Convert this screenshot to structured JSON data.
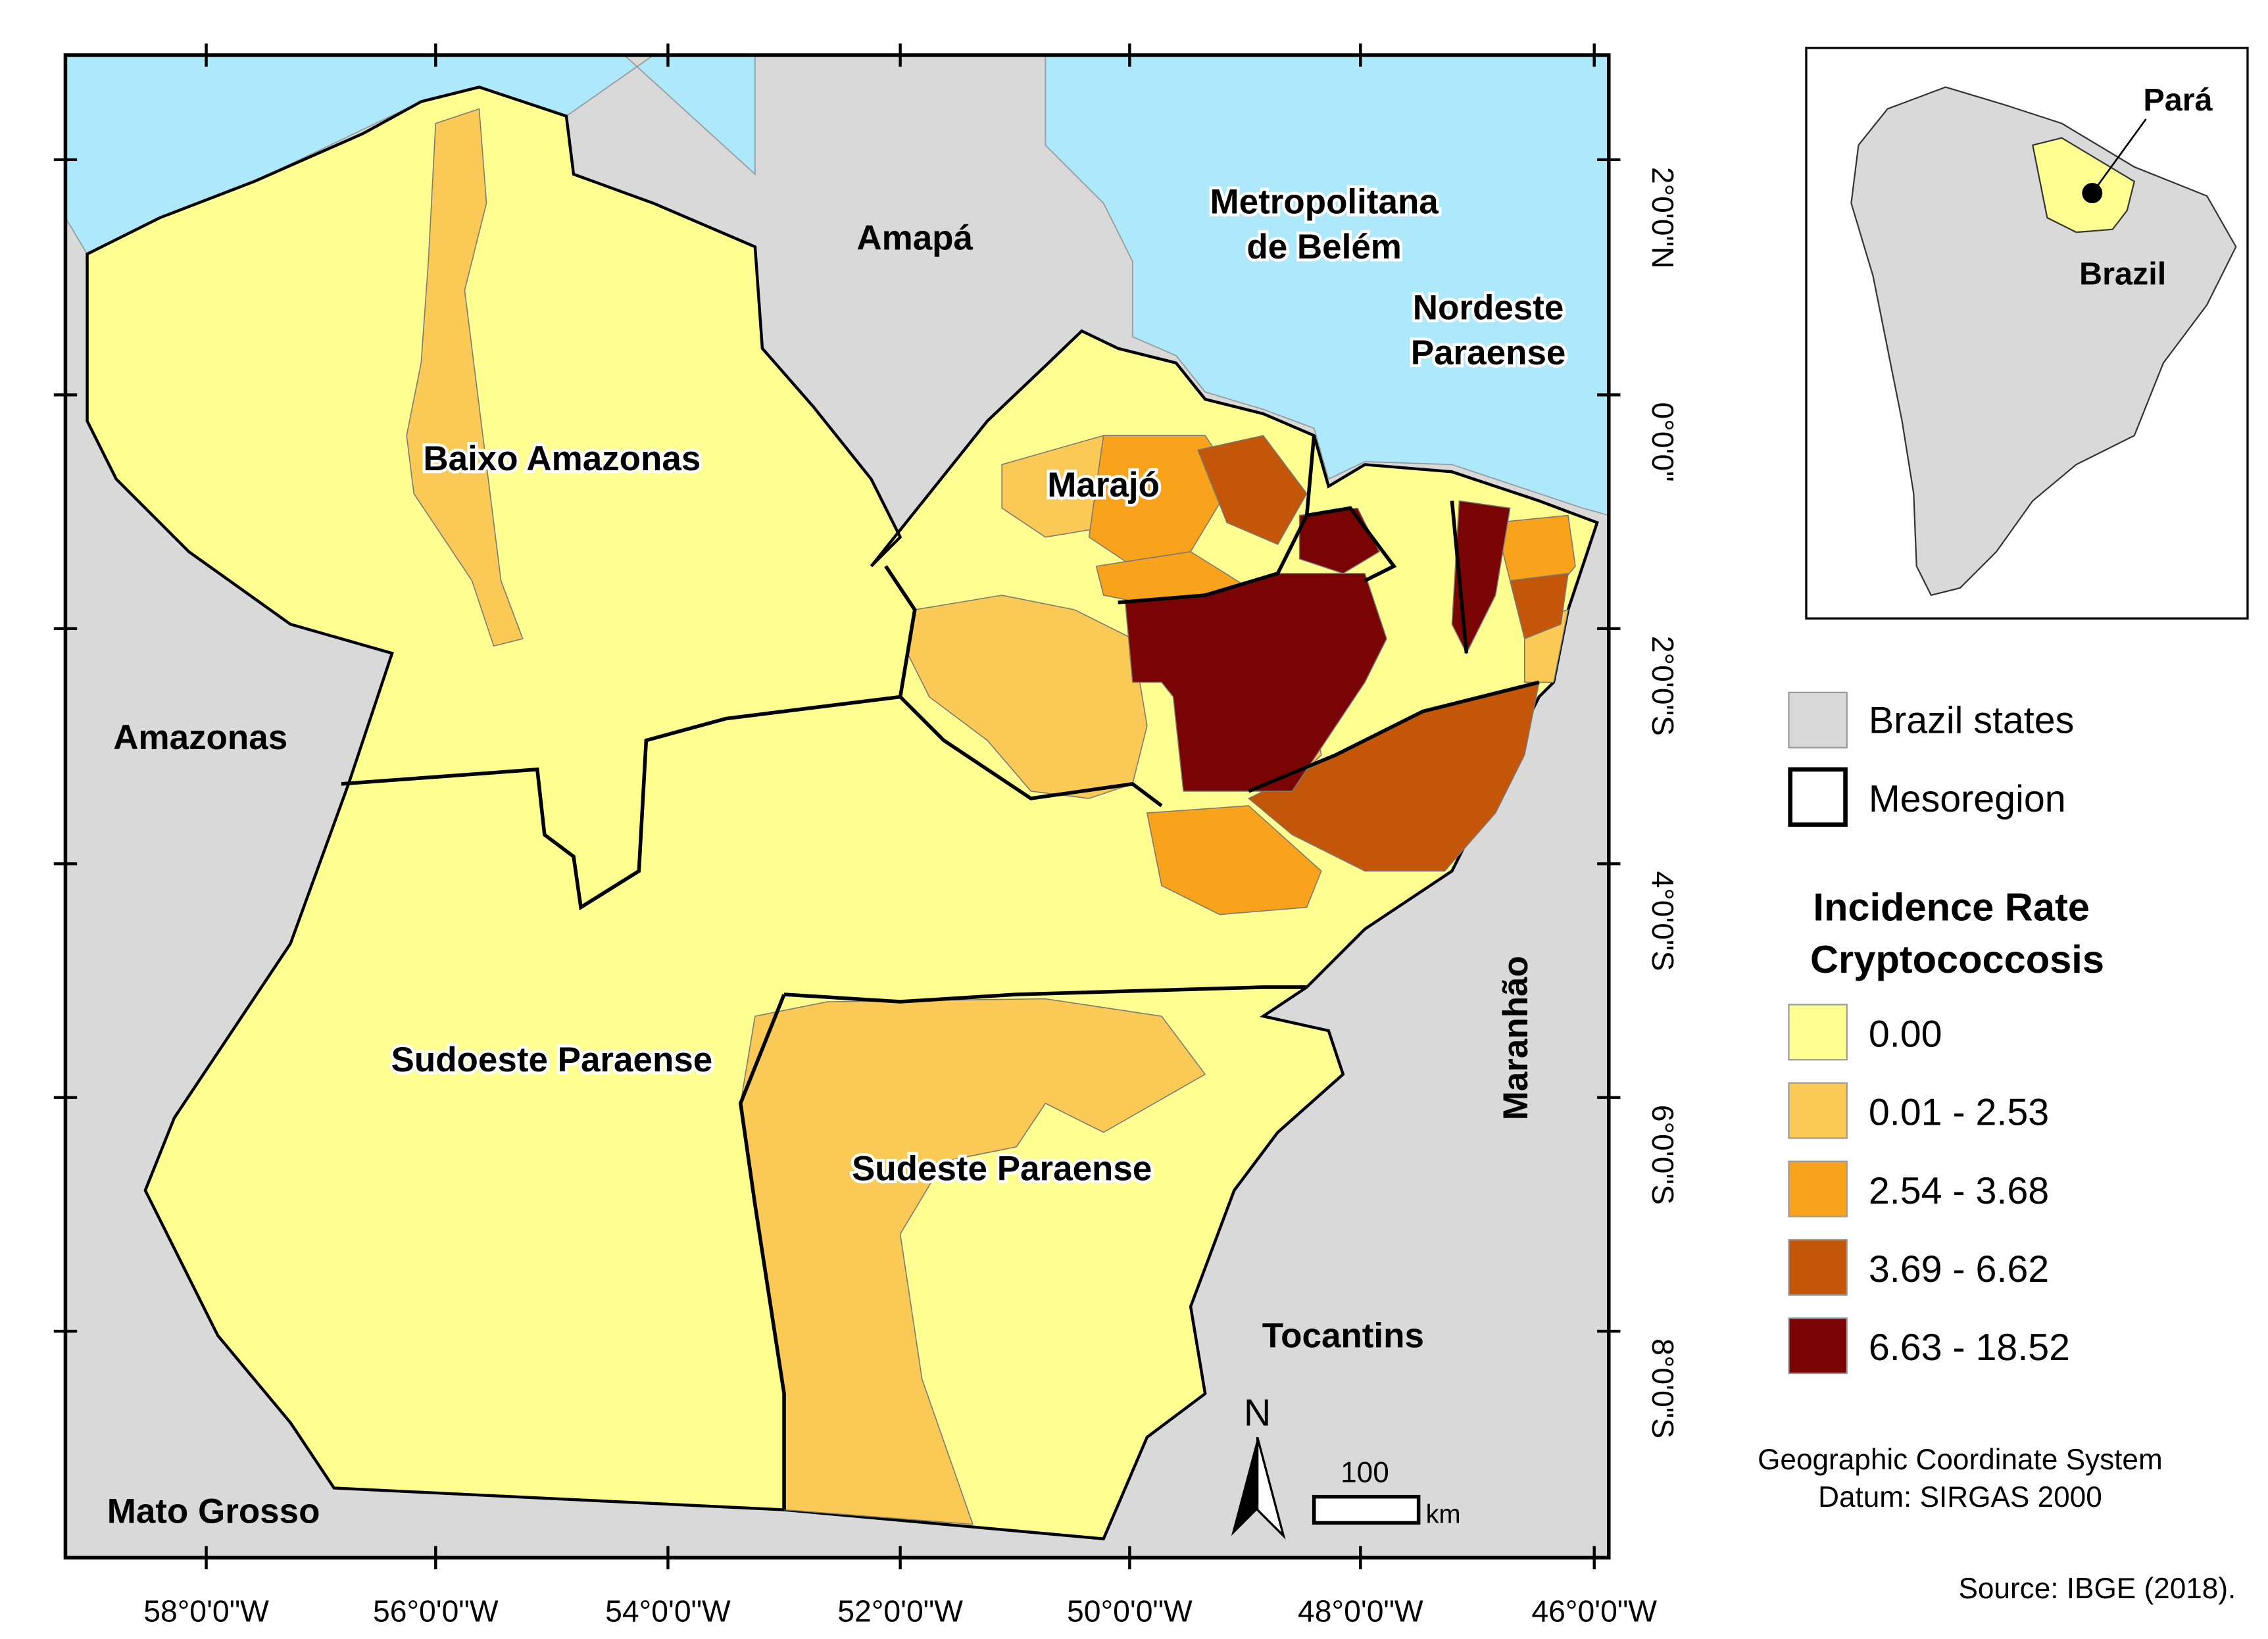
{
  "map": {
    "regions": [
      [
        "Baixo Amazonas"
      ],
      [
        "Marajó"
      ],
      [
        "Metropolitana",
        "de Belém"
      ],
      [
        "Nordeste",
        "Paraense"
      ],
      [
        "Sudoeste Paraense"
      ],
      [
        "Sudeste Paraense"
      ]
    ],
    "states": [
      "Amapá",
      "Amazonas",
      "Mato Grosso",
      "Tocantins",
      "Maranhão"
    ],
    "longitude_ticks": [
      "58°0'0\"W",
      "56°0'0\"W",
      "54°0'0\"W",
      "52°0'0\"W",
      "50°0'0\"W",
      "48°0'0\"W",
      "46°0'0\"W"
    ],
    "latitude_ticks": [
      "2°0'0\"N",
      "0°0'0\"",
      "2°0'0\"S",
      "4°0'0\"S",
      "6°0'0\"S",
      "8°0'0\"S"
    ],
    "north": "N",
    "scale_distance": "100",
    "scale_unit": "km"
  },
  "inset": {
    "state": "Pará",
    "country": "Brazil"
  },
  "legend": {
    "brazil_states": "Brazil states",
    "mesoregion": "Mesoregion",
    "title": [
      "Incidence Rate",
      "Cryptococcosis"
    ],
    "classes": [
      {
        "label": "0.00",
        "color": "#fefe91"
      },
      {
        "label": "0.01 - 2.53",
        "color": "#fbc955"
      },
      {
        "label": "2.54 - 3.68",
        "color": "#f9a21b"
      },
      {
        "label": "3.69 - 6.62",
        "color": "#c4560a"
      },
      {
        "label": "6.63 - 18.52",
        "color": "#7a0303"
      }
    ]
  },
  "notes": [
    "Geographic Coordinate System",
    "Datum: SIRGAS 2000"
  ],
  "source": "Source: IBGE (2018)."
}
